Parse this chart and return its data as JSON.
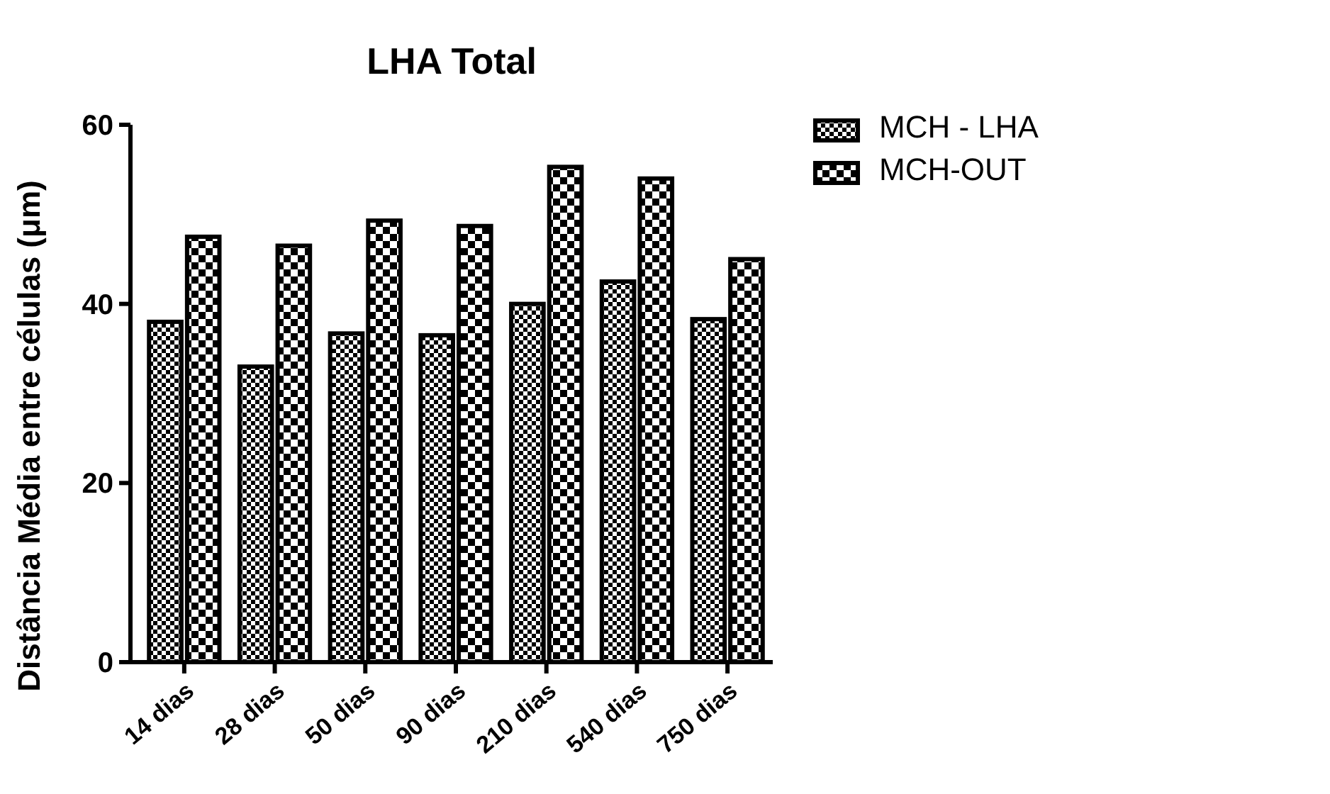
{
  "chart_data": {
    "type": "bar",
    "title": "LHA Total",
    "ylabel": "Distância Média entre células (μm)",
    "categories": [
      "14 dias",
      "28 dias",
      "50 dias",
      "90 dias",
      "210 dias",
      "540 dias",
      "750 dias"
    ],
    "series": [
      {
        "name": "MCH - LHA",
        "color": "#000000",
        "values": [
          38,
          33,
          36.7,
          36.5,
          40,
          42.5,
          38.3
        ]
      },
      {
        "name": "MCH-OUT",
        "color": "#000000",
        "values": [
          47.5,
          46.5,
          49.3,
          48.7,
          55.3,
          54,
          45
        ]
      }
    ],
    "ylim": [
      0,
      60
    ],
    "yticks": [
      0,
      20,
      40,
      60
    ],
    "legend": "right",
    "grid": false
  }
}
